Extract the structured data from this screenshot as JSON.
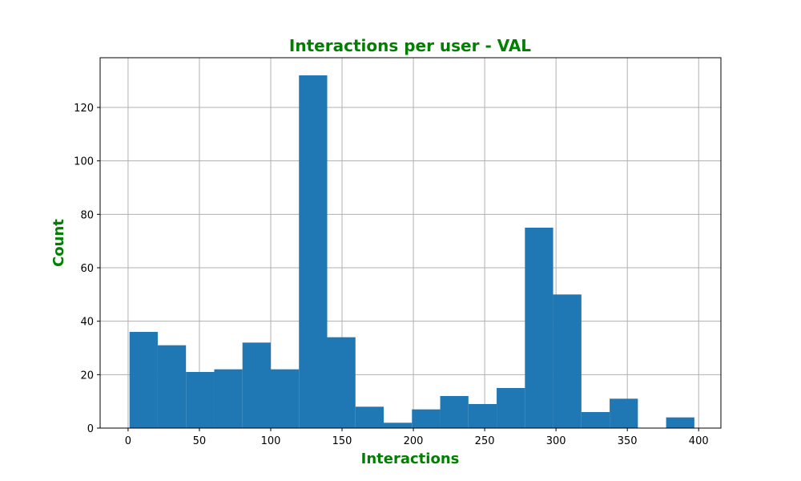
{
  "chart_data": {
    "type": "bar",
    "title": "Interactions per user - VAL",
    "xlabel": "Interactions",
    "ylabel": "Count",
    "xlim": [
      -19.6,
      415.6
    ],
    "ylim": [
      0,
      138.6
    ],
    "x_ticks": [
      0,
      50,
      100,
      150,
      200,
      250,
      300,
      350,
      400
    ],
    "y_ticks": [
      0,
      20,
      40,
      60,
      80,
      100,
      120
    ],
    "grid": true,
    "bins": [
      {
        "start": 1,
        "end": 20.8,
        "value": 36
      },
      {
        "start": 20.8,
        "end": 40.6,
        "value": 31
      },
      {
        "start": 40.6,
        "end": 60.4,
        "value": 21
      },
      {
        "start": 60.4,
        "end": 80.2,
        "value": 22
      },
      {
        "start": 80.2,
        "end": 100,
        "value": 32
      },
      {
        "start": 100,
        "end": 119.8,
        "value": 22
      },
      {
        "start": 119.8,
        "end": 139.6,
        "value": 132
      },
      {
        "start": 139.6,
        "end": 159.4,
        "value": 34
      },
      {
        "start": 159.4,
        "end": 179.2,
        "value": 8
      },
      {
        "start": 179.2,
        "end": 199,
        "value": 2
      },
      {
        "start": 199,
        "end": 218.8,
        "value": 7
      },
      {
        "start": 218.8,
        "end": 238.6,
        "value": 12
      },
      {
        "start": 238.6,
        "end": 258.4,
        "value": 9
      },
      {
        "start": 258.4,
        "end": 278.2,
        "value": 15
      },
      {
        "start": 278.2,
        "end": 298,
        "value": 75
      },
      {
        "start": 298,
        "end": 317.8,
        "value": 50
      },
      {
        "start": 317.8,
        "end": 337.6,
        "value": 6
      },
      {
        "start": 337.6,
        "end": 357.4,
        "value": 11
      },
      {
        "start": 357.4,
        "end": 377.2,
        "value": 0
      },
      {
        "start": 377.2,
        "end": 397,
        "value": 4
      }
    ]
  },
  "colors": {
    "bar": "#1f77b4",
    "grid": "#b0b0b0",
    "title": "#008000",
    "axis_label": "#008000",
    "spine": "#000000"
  }
}
